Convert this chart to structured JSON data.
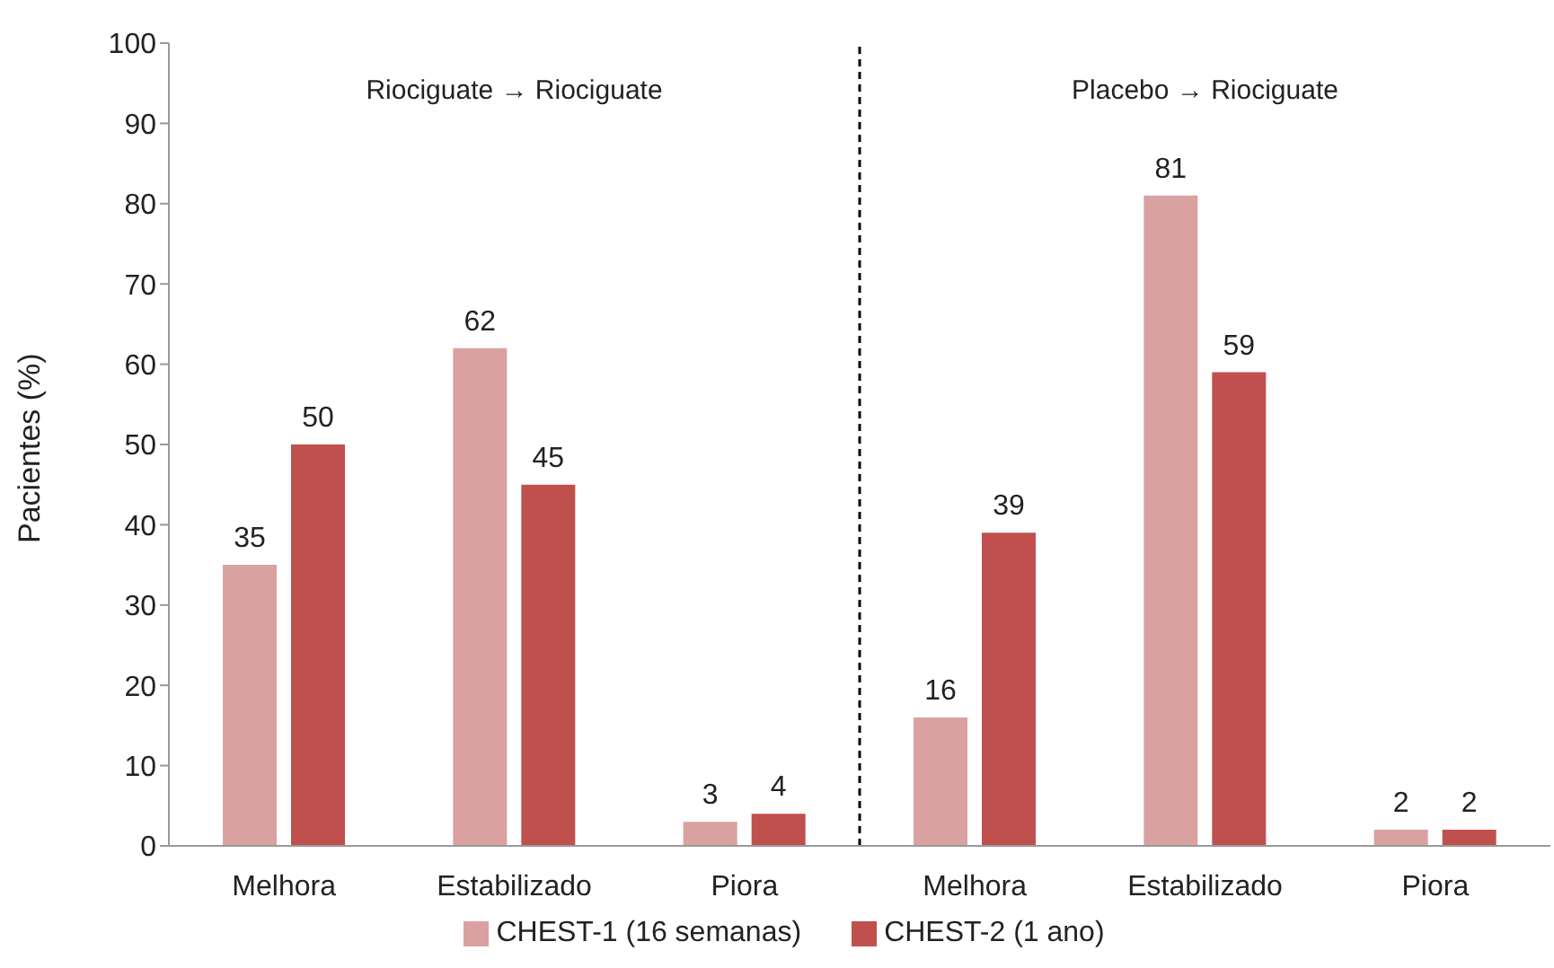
{
  "chart_data": {
    "type": "bar",
    "ylabel": "Pacientes (%)",
    "categories": [
      "Melhora",
      "Estabilizado",
      "Piora",
      "Melhora",
      "Estabilizado",
      "Piora"
    ],
    "series": [
      {
        "name": "CHEST-1 (16 semanas)",
        "color": "#d9a1a0",
        "values": [
          35,
          62,
          3,
          16,
          81,
          2
        ]
      },
      {
        "name": "CHEST-2 (1 ano)",
        "color": "#c0504d",
        "values": [
          50,
          45,
          4,
          39,
          59,
          2
        ]
      }
    ],
    "ylim": [
      0,
      100
    ],
    "yticks": [
      0,
      10,
      20,
      30,
      40,
      50,
      60,
      70,
      80,
      90,
      100
    ],
    "data_labels": true,
    "grid": false,
    "legend": "bottom",
    "annotations": [
      "Riociguate → Riociguate",
      "Placebo → Riociguate"
    ]
  }
}
